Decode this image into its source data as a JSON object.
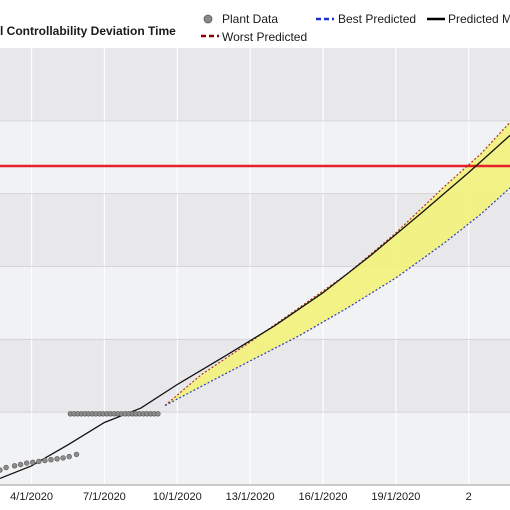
{
  "chart_data": {
    "type": "line",
    "title": "l Controllability Deviation Time",
    "x_tick_labels": [
      "4/1/2020",
      "7/1/2020",
      "10/1/2020",
      "13/1/2020",
      "16/1/2020",
      "19/1/2020",
      "2"
    ],
    "legend": [
      {
        "name": "Plant Data",
        "style": "circle",
        "color": "#8a8a8a"
      },
      {
        "name": "Best Predicted",
        "style": "dashed",
        "color": "#1f2fd0"
      },
      {
        "name": "Predicted M",
        "style": "solid",
        "color": "#000000"
      },
      {
        "name": "Worst Predicted",
        "style": "dashed",
        "color": "#8b0000"
      }
    ],
    "x_range": [
      2.7,
      23.7
    ],
    "y_range": [
      0,
      100
    ],
    "limit_line": {
      "y": 73,
      "color": "#e8202a"
    },
    "plant_data": [
      [
        2.7,
        3.4
      ],
      [
        2.95,
        4.0
      ],
      [
        3.3,
        4.4
      ],
      [
        3.55,
        4.7
      ],
      [
        3.8,
        5.0
      ],
      [
        4.05,
        5.2
      ],
      [
        4.3,
        5.4
      ],
      [
        4.55,
        5.6
      ],
      [
        4.8,
        5.8
      ],
      [
        5.05,
        6.0
      ],
      [
        5.3,
        6.2
      ],
      [
        5.55,
        6.5
      ],
      [
        5.85,
        7.0
      ],
      [
        5.6,
        16.3
      ],
      [
        5.75,
        16.3
      ],
      [
        5.9,
        16.3
      ],
      [
        6.05,
        16.3
      ],
      [
        6.2,
        16.3
      ],
      [
        6.35,
        16.3
      ],
      [
        6.5,
        16.3
      ],
      [
        6.65,
        16.3
      ],
      [
        6.8,
        16.3
      ],
      [
        6.95,
        16.3
      ],
      [
        7.1,
        16.3
      ],
      [
        7.25,
        16.3
      ],
      [
        7.4,
        16.3
      ],
      [
        7.55,
        16.3
      ],
      [
        7.7,
        16.3
      ],
      [
        7.85,
        16.3
      ],
      [
        8.0,
        16.3
      ],
      [
        8.15,
        16.3
      ],
      [
        8.3,
        16.3
      ],
      [
        8.45,
        16.3
      ],
      [
        8.6,
        16.3
      ],
      [
        8.75,
        16.3
      ],
      [
        8.9,
        16.3
      ],
      [
        9.05,
        16.3
      ],
      [
        9.2,
        16.3
      ]
    ],
    "predicted": [
      [
        2.7,
        1.5
      ],
      [
        4.0,
        4.4
      ],
      [
        5.5,
        9.2
      ],
      [
        7.0,
        14.3
      ],
      [
        8.5,
        17.6
      ],
      [
        10,
        23.0
      ],
      [
        12,
        29.6
      ],
      [
        14,
        36.4
      ],
      [
        16,
        44.0
      ],
      [
        18,
        52.7
      ],
      [
        20,
        62.0
      ],
      [
        22,
        71.5
      ],
      [
        23.7,
        80.0
      ]
    ],
    "best_predicted": [
      [
        9.5,
        18.2
      ],
      [
        11,
        22.6
      ],
      [
        13,
        28.4
      ],
      [
        15,
        34.1
      ],
      [
        17,
        40.5
      ],
      [
        19,
        47.4
      ],
      [
        21,
        55.4
      ],
      [
        22.5,
        62.0
      ],
      [
        23.7,
        68.0
      ]
    ],
    "worst_predicted": [
      [
        9.5,
        18.2
      ],
      [
        11,
        25.3
      ],
      [
        13,
        32.7
      ],
      [
        15,
        40.5
      ],
      [
        17,
        48.3
      ],
      [
        19,
        57.7
      ],
      [
        21,
        68.3
      ],
      [
        22.5,
        75.8
      ],
      [
        23.7,
        83.0
      ]
    ]
  }
}
